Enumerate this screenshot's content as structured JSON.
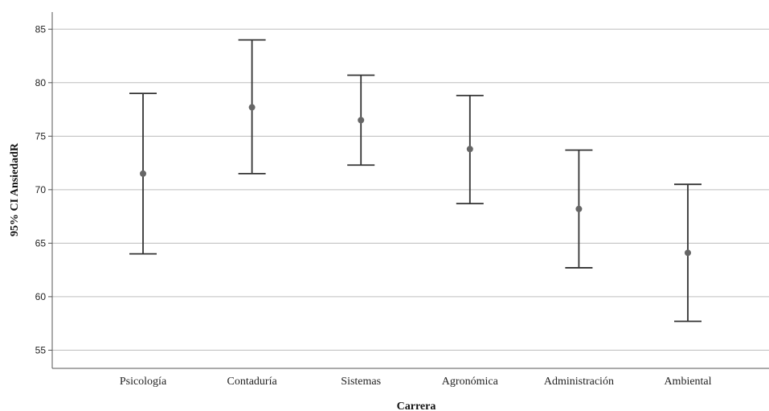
{
  "chart_data": {
    "type": "errorbar",
    "xlabel": "Carrera",
    "ylabel": "95% CI AnsiedadR",
    "categories": [
      "Psicología",
      "Contaduría",
      "Sistemas",
      "Agronómica",
      "Administración",
      "Ambiental"
    ],
    "series": [
      {
        "mean": [
          71.5,
          77.7,
          76.5,
          73.8,
          68.2,
          64.1
        ],
        "lower": [
          64.0,
          71.5,
          72.3,
          68.7,
          62.7,
          57.7
        ],
        "upper": [
          79.0,
          84.0,
          80.7,
          78.8,
          73.7,
          70.5
        ]
      }
    ],
    "ylim": [
      53.3,
      86.6
    ],
    "yticks": [
      55,
      60,
      65,
      70,
      75,
      80,
      85
    ],
    "grid": "horizontal",
    "colors": {
      "bar": "#333333",
      "point": "#666666",
      "grid": "#bdbdbd",
      "axis": "#555555"
    }
  }
}
